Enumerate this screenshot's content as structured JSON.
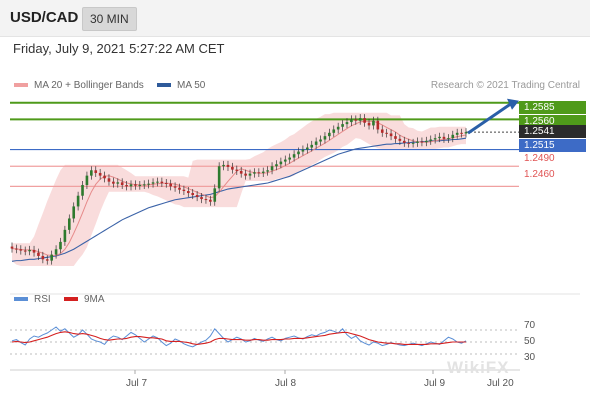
{
  "header": {
    "symbol": "USD/CAD",
    "timeframe": "30 MIN"
  },
  "datetime": "Friday, July 9, 2021 5:27:22 AM CET",
  "legend": {
    "bollinger": "MA 20 + Bollinger Bands",
    "ma50": "MA 50",
    "credit": "Research © 2021 Trading Central"
  },
  "colors": {
    "green": "#4f9a1a",
    "blue": "#3d6bc6",
    "red": "#e05454",
    "up": "#2e7a2e",
    "down": "#b52a2a",
    "band": "#f7d0d0"
  },
  "chart_data": [
    {
      "type": "candlestick",
      "title": "USD/CAD 30 MIN",
      "x_ticks": [
        "Jul 7",
        "Jul 8",
        "Jul 9",
        "Jul 20"
      ],
      "ylim": [
        1.2335,
        1.2595
      ],
      "last_price": "1.2541",
      "levels": [
        {
          "label": "1.2585",
          "value": 1.2585,
          "style": "resistance"
        },
        {
          "label": "1.2560",
          "value": 1.256,
          "style": "resistance"
        },
        {
          "label": "1.2515",
          "value": 1.2515,
          "style": "pivot"
        },
        {
          "label": "1.2490",
          "value": 1.249,
          "style": "support"
        },
        {
          "label": "1.2460",
          "value": 1.246,
          "style": "support"
        }
      ],
      "close": [
        1.2367,
        1.2366,
        1.2364,
        1.2363,
        1.2365,
        1.2361,
        1.2356,
        1.2351,
        1.2349,
        1.2358,
        1.2366,
        1.2377,
        1.2395,
        1.2412,
        1.243,
        1.2446,
        1.2462,
        1.2476,
        1.2484,
        1.248,
        1.2476,
        1.2472,
        1.2467,
        1.2464,
        1.2466,
        1.2462,
        1.246,
        1.2463,
        1.2461,
        1.2462,
        1.2463,
        1.2464,
        1.2466,
        1.2467,
        1.2465,
        1.2464,
        1.246,
        1.2458,
        1.2455,
        1.2453,
        1.245,
        1.2447,
        1.2444,
        1.2441,
        1.244,
        1.2437,
        1.2457,
        1.249,
        1.2492,
        1.2489,
        1.2485,
        1.2483,
        1.2479,
        1.2476,
        1.2479,
        1.2481,
        1.248,
        1.2482,
        1.2484,
        1.249,
        1.2493,
        1.2497,
        1.25,
        1.2503,
        1.2508,
        1.2512,
        1.2515,
        1.2518,
        1.2522,
        1.2527,
        1.253,
        1.2535,
        1.254,
        1.2545,
        1.2549,
        1.2553,
        1.2556,
        1.256,
        1.2558,
        1.2562,
        1.2555,
        1.2551,
        1.2558,
        1.2545,
        1.254,
        1.2539,
        1.2535,
        1.2531,
        1.2528,
        1.2525,
        1.2524,
        1.2525,
        1.2527,
        1.2526,
        1.2528,
        1.253,
        1.2532,
        1.2534,
        1.2531,
        1.2532,
        1.2537,
        1.254,
        1.2539,
        1.2541
      ],
      "ma50": [
        1.2348,
        1.2349,
        1.2349,
        1.235,
        1.2351,
        1.2351,
        1.2352,
        1.2353,
        1.2354,
        1.2355,
        1.2356,
        1.2358,
        1.236,
        1.2363,
        1.2366,
        1.237,
        1.2374,
        1.2378,
        1.2382,
        1.2386,
        1.239,
        1.2394,
        1.2398,
        1.2402,
        1.2406,
        1.241,
        1.2413,
        1.2416,
        1.2419,
        1.2422,
        1.2425,
        1.2428,
        1.243,
        1.2432,
        1.2434,
        1.2436,
        1.2438,
        1.244,
        1.2441,
        1.2442,
        1.2443,
        1.2444,
        1.2445,
        1.2446,
        1.2447,
        1.2448,
        1.245,
        1.2452,
        1.2454,
        1.2456,
        1.2457,
        1.2458,
        1.2459,
        1.246,
        1.2461,
        1.2462,
        1.2463,
        1.2464,
        1.2465,
        1.2467,
        1.2469,
        1.2471,
        1.2473,
        1.2475,
        1.2478,
        1.2481,
        1.2484,
        1.2487,
        1.249,
        1.2493,
        1.2496,
        1.2499,
        1.2502,
        1.2505,
        1.2508,
        1.251,
        1.2512,
        1.2514,
        1.2516,
        1.2517,
        1.2518,
        1.2519,
        1.252,
        1.2521,
        1.2522,
        1.2523,
        1.2523,
        1.2524,
        1.2524,
        1.2525,
        1.2525,
        1.2526,
        1.2526,
        1.2527,
        1.2527,
        1.2528,
        1.2528,
        1.2528,
        1.2529,
        1.2529,
        1.253,
        1.253,
        1.2531,
        1.2532
      ]
    },
    {
      "type": "line",
      "title": "RSI",
      "series": [
        {
          "name": "RSI"
        },
        {
          "name": "9MA"
        }
      ],
      "y_ticks": [
        "70",
        "50",
        "30"
      ],
      "ylim": [
        10,
        90
      ],
      "rsi": [
        52,
        54,
        49,
        45,
        55,
        60,
        58,
        62,
        65,
        70,
        75,
        68,
        72,
        65,
        58,
        62,
        70,
        63,
        55,
        52,
        50,
        46,
        55,
        60,
        58,
        54,
        60,
        66,
        62,
        56,
        50,
        55,
        60,
        57,
        50,
        44,
        48,
        55,
        52,
        47,
        44,
        42,
        46,
        50,
        53,
        60,
        72,
        64,
        56,
        50,
        54,
        58,
        55,
        50,
        52,
        56,
        53,
        51,
        55,
        58,
        54,
        52,
        56,
        58,
        60,
        57,
        55,
        59,
        62,
        60,
        64,
        66,
        70,
        68,
        65,
        72,
        62,
        56,
        60,
        52,
        48,
        45,
        50,
        48,
        44,
        46,
        49,
        47,
        45,
        44,
        46,
        48,
        46,
        44,
        47,
        50,
        48,
        46,
        52,
        58,
        55,
        50,
        48,
        52
      ],
      "ma9": [
        50,
        51,
        50,
        49,
        50,
        52,
        54,
        56,
        58,
        61,
        64,
        66,
        67,
        66,
        64,
        63,
        64,
        63,
        61,
        59,
        56,
        54,
        53,
        54,
        55,
        55,
        56,
        58,
        59,
        59,
        58,
        57,
        57,
        56,
        55,
        52,
        51,
        51,
        51,
        50,
        49,
        47,
        46,
        47,
        48,
        50,
        54,
        56,
        56,
        55,
        54,
        54,
        54,
        53,
        53,
        54,
        54,
        53,
        53,
        54,
        54,
        54,
        55,
        55,
        56,
        56,
        56,
        57,
        58,
        59,
        60,
        61,
        63,
        64,
        65,
        66,
        66,
        64,
        62,
        60,
        57,
        54,
        52,
        50,
        49,
        48,
        48,
        47,
        47,
        46,
        46,
        46,
        46,
        46,
        46,
        47,
        47,
        47,
        48,
        49,
        50,
        50,
        50,
        50
      ]
    }
  ]
}
